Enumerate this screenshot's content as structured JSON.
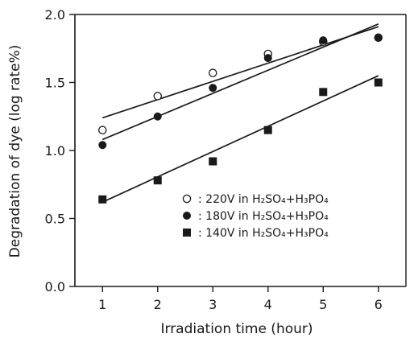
{
  "chart_data": {
    "type": "scatter",
    "xlabel": "Irradiation time (hour)",
    "ylabel": "Degradation of dye (log rate%)",
    "xlim": [
      0.5,
      6.5
    ],
    "ylim": [
      0.0,
      2.0
    ],
    "x_ticks": [
      1,
      2,
      3,
      4,
      5,
      6
    ],
    "y_ticks": [
      "0.0",
      "0.5",
      "1.0",
      "1.5",
      "2.0"
    ],
    "grid": false,
    "legend_position": "bottom-right",
    "series": [
      {
        "name": "220V in H₂SO₄+H₃PO₄",
        "legend_sep": ": ",
        "marker": "open-circle",
        "x": [
          1,
          2,
          3,
          4,
          5,
          6
        ],
        "y": [
          1.15,
          1.4,
          1.57,
          1.71,
          1.8,
          1.83
        ],
        "fit": {
          "x": [
            1,
            6
          ],
          "y": [
            1.24,
            1.91
          ]
        }
      },
      {
        "name": "180V in H₂SO₄+H₃PO₄",
        "legend_sep": ": ",
        "marker": "filled-circle",
        "x": [
          1,
          2,
          3,
          4,
          5,
          6
        ],
        "y": [
          1.04,
          1.25,
          1.46,
          1.68,
          1.81,
          1.83
        ],
        "fit": {
          "x": [
            1,
            6
          ],
          "y": [
            1.08,
            1.93
          ]
        }
      },
      {
        "name": "140V in H₂SO₄+H₃PO₄",
        "legend_sep": ": ",
        "marker": "filled-square",
        "x": [
          1,
          2,
          3,
          4,
          5,
          6
        ],
        "y": [
          0.64,
          0.78,
          0.92,
          1.15,
          1.43,
          1.5
        ],
        "fit": {
          "x": [
            1,
            6
          ],
          "y": [
            0.62,
            1.55
          ]
        }
      }
    ],
    "colors": {
      "ink": "#1a1a1a",
      "background": "#ffffff"
    }
  }
}
